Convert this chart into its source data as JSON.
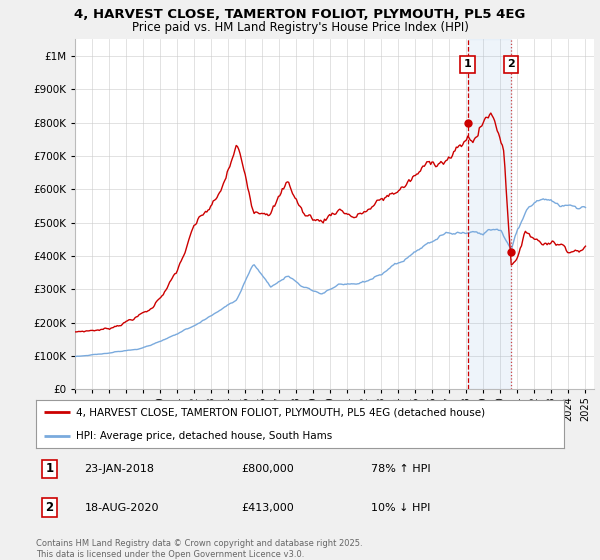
{
  "title_line1": "4, HARVEST CLOSE, TAMERTON FOLIOT, PLYMOUTH, PL5 4EG",
  "title_line2": "Price paid vs. HM Land Registry's House Price Index (HPI)",
  "ylim": [
    0,
    1050000
  ],
  "xlim_start": 1995.0,
  "xlim_end": 2025.5,
  "red_label": "4, HARVEST CLOSE, TAMERTON FOLIOT, PLYMOUTH, PL5 4EG (detached house)",
  "blue_label": "HPI: Average price, detached house, South Hams",
  "annotation1_num": "1",
  "annotation1_date": "23-JAN-2018",
  "annotation1_price": "£800,000",
  "annotation1_hpi": "78% ↑ HPI",
  "annotation2_num": "2",
  "annotation2_date": "18-AUG-2020",
  "annotation2_price": "£413,000",
  "annotation2_hpi": "10% ↓ HPI",
  "footnote": "Contains HM Land Registry data © Crown copyright and database right 2025.\nThis data is licensed under the Open Government Licence v3.0.",
  "marker1_x": 2018.07,
  "marker1_y": 800000,
  "marker2_x": 2020.63,
  "marker2_y": 413000,
  "vline1_x": 2018.07,
  "vline2_x": 2020.63,
  "red_color": "#cc0000",
  "blue_color": "#7aaadd",
  "grid_color": "#cccccc",
  "fig_bg": "#f0f0f0"
}
